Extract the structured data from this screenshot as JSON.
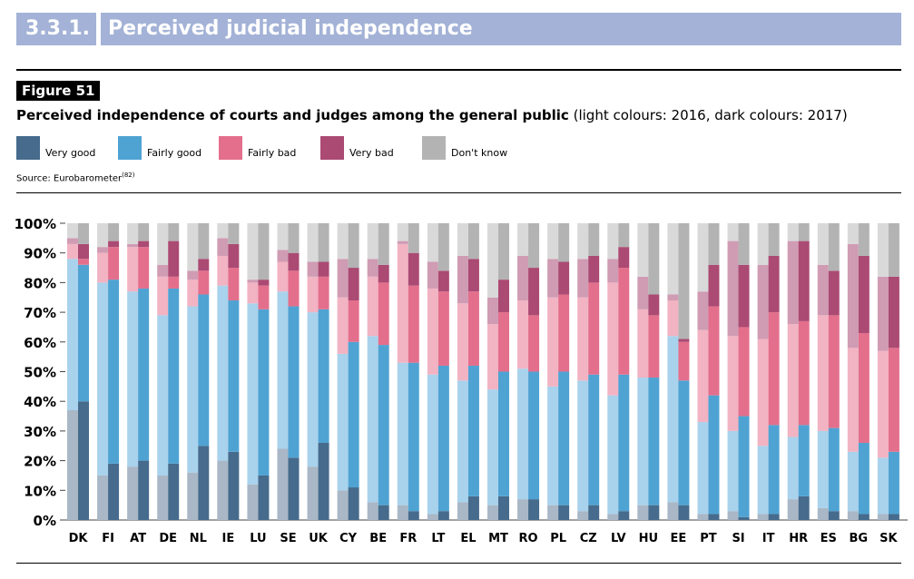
{
  "section": {
    "number": "3.3.1.",
    "title": "Perceived judicial independence"
  },
  "figure": {
    "label": "Figure 51",
    "title_bold": "Perceived independence of courts and judges among the general public",
    "title_rest": "(light colours: 2016, dark colours: 2017)",
    "source_text": "Source: Eurobarometer",
    "source_ref": "(82)"
  },
  "legend": [
    {
      "label": "Very good",
      "color": "#466b8c"
    },
    {
      "label": "Fairly good",
      "color": "#4fa3d3"
    },
    {
      "label": "Fairly bad",
      "color": "#e36f8c"
    },
    {
      "label": "Very bad",
      "color": "#ab4a73"
    },
    {
      "label": "Don't know",
      "color": "#b3b3b3"
    }
  ],
  "chart_data": {
    "type": "bar",
    "stacked": true,
    "ylim": [
      0,
      100
    ],
    "yticks": [
      "0%",
      "10%",
      "20%",
      "30%",
      "40%",
      "50%",
      "60%",
      "70%",
      "80%",
      "90%",
      "100%"
    ],
    "categories": [
      "DK",
      "FI",
      "AT",
      "DE",
      "NL",
      "IE",
      "LU",
      "SE",
      "UK",
      "CY",
      "BE",
      "FR",
      "LT",
      "EL",
      "MT",
      "RO",
      "PL",
      "CZ",
      "LV",
      "HU",
      "EE",
      "PT",
      "SI",
      "IT",
      "HR",
      "ES",
      "BG",
      "SK"
    ],
    "series_order": [
      "Very good",
      "Fairly good",
      "Fairly bad",
      "Very bad",
      "Don't know"
    ],
    "colors_2017": [
      "#466b8c",
      "#4fa3d3",
      "#e36f8c",
      "#ab4a73",
      "#b3b3b3"
    ],
    "colors_2016": [
      "#a9b7c6",
      "#a9d2ec",
      "#f2b3c3",
      "#cf9cb3",
      "#d9d9d9"
    ],
    "values_2016": [
      [
        37,
        51,
        5,
        2,
        5
      ],
      [
        15,
        65,
        10,
        2,
        8
      ],
      [
        18,
        59,
        15,
        1,
        7
      ],
      [
        15,
        54,
        13,
        4,
        14
      ],
      [
        16,
        56,
        9,
        3,
        16
      ],
      [
        20,
        59,
        10,
        6,
        5
      ],
      [
        12,
        61,
        7,
        1,
        19
      ],
      [
        24,
        53,
        10,
        4,
        9
      ],
      [
        18,
        52,
        12,
        5,
        13
      ],
      [
        10,
        46,
        19,
        13,
        12
      ],
      [
        6,
        56,
        20,
        6,
        12
      ],
      [
        5,
        48,
        40,
        1,
        6
      ],
      [
        2,
        47,
        29,
        9,
        13
      ],
      [
        6,
        41,
        26,
        16,
        11
      ],
      [
        5,
        39,
        22,
        9,
        25
      ],
      [
        7,
        44,
        23,
        15,
        11
      ],
      [
        5,
        40,
        30,
        13,
        12
      ],
      [
        3,
        44,
        28,
        13,
        12
      ],
      [
        2,
        40,
        38,
        8,
        12
      ],
      [
        5,
        43,
        23,
        11,
        18
      ],
      [
        6,
        56,
        12,
        2,
        24
      ],
      [
        2,
        31,
        31,
        13,
        23
      ],
      [
        3,
        27,
        32,
        32,
        6
      ],
      [
        2,
        23,
        36,
        25,
        14
      ],
      [
        7,
        21,
        38,
        28,
        6
      ],
      [
        4,
        26,
        39,
        17,
        14
      ],
      [
        3,
        20,
        35,
        35,
        7
      ],
      [
        2,
        19,
        36,
        25,
        18
      ]
    ],
    "values_2017": [
      [
        40,
        46,
        2,
        5,
        7
      ],
      [
        19,
        62,
        11,
        2,
        6
      ],
      [
        20,
        58,
        14,
        2,
        6
      ],
      [
        19,
        59,
        4,
        12,
        6
      ],
      [
        25,
        51,
        8,
        4,
        12
      ],
      [
        23,
        51,
        11,
        8,
        7
      ],
      [
        15,
        56,
        8,
        2,
        19
      ],
      [
        21,
        51,
        12,
        6,
        10
      ],
      [
        26,
        45,
        11,
        5,
        13
      ],
      [
        11,
        49,
        14,
        11,
        15
      ],
      [
        5,
        54,
        21,
        6,
        14
      ],
      [
        3,
        50,
        26,
        11,
        10
      ],
      [
        3,
        49,
        25,
        7,
        16
      ],
      [
        8,
        44,
        25,
        11,
        12
      ],
      [
        8,
        42,
        20,
        11,
        19
      ],
      [
        7,
        43,
        19,
        16,
        15
      ],
      [
        5,
        45,
        26,
        11,
        13
      ],
      [
        5,
        44,
        31,
        9,
        11
      ],
      [
        3,
        46,
        36,
        7,
        8
      ],
      [
        5,
        43,
        21,
        7,
        24
      ],
      [
        5,
        42,
        13,
        1,
        39
      ],
      [
        2,
        40,
        30,
        14,
        14
      ],
      [
        1,
        34,
        30,
        21,
        14
      ],
      [
        2,
        30,
        38,
        19,
        11
      ],
      [
        8,
        24,
        35,
        27,
        6
      ],
      [
        3,
        28,
        38,
        15,
        16
      ],
      [
        2,
        24,
        37,
        26,
        11
      ],
      [
        2,
        21,
        35,
        24,
        18
      ]
    ]
  }
}
